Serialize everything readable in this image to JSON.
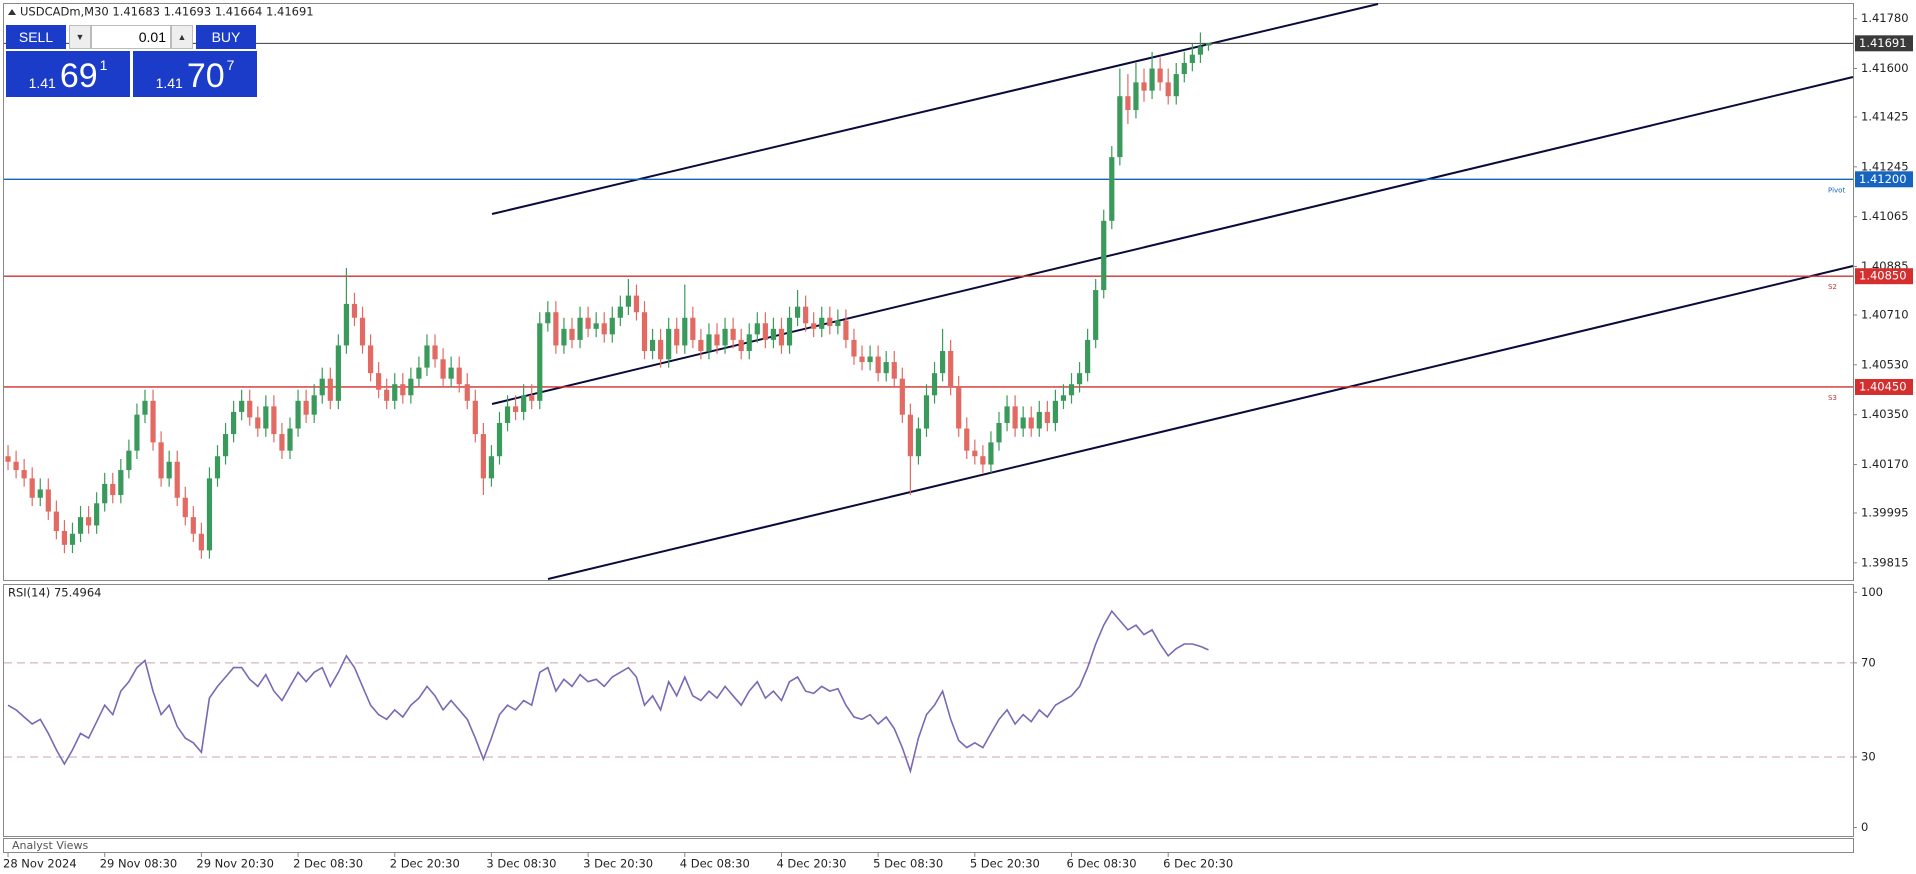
{
  "chart_data": [
    {
      "type": "candlestick",
      "title": "USDCADm,M30  1.41683 1.41693 1.41664 1.41691",
      "up_color": "#3a9a5b",
      "down_color": "#e26a63",
      "xlim": [
        -0.5,
        229
      ],
      "xticks": [
        {
          "value": 0,
          "label": "28 Nov 2024"
        },
        {
          "value": 12,
          "label": "29 Nov 08:30"
        },
        {
          "value": 24,
          "label": "29 Nov 20:30"
        },
        {
          "value": 36,
          "label": "2 Dec 08:30"
        },
        {
          "value": 48,
          "label": "2 Dec 20:30"
        },
        {
          "value": 60,
          "label": "3 Dec 08:30"
        },
        {
          "value": 72,
          "label": "3 Dec 20:30"
        },
        {
          "value": 84,
          "label": "4 Dec 08:30"
        },
        {
          "value": 96,
          "label": "4 Dec 20:30"
        },
        {
          "value": 108,
          "label": "5 Dec 08:30"
        },
        {
          "value": 120,
          "label": "5 Dec 20:30"
        },
        {
          "value": 132,
          "label": "6 Dec 08:30"
        },
        {
          "value": 144,
          "label": "6 Dec 20:30"
        }
      ],
      "ylim": [
        1.39753,
        1.41833
      ],
      "yticks": [
        {
          "value": 1.4178,
          "label": "1.41780"
        },
        {
          "value": 1.416,
          "label": "1.41600"
        },
        1.41425,
        1.41245,
        1.41065,
        1.40885,
        {
          "value": 1.4071,
          "label": "1.40710"
        },
        {
          "value": 1.4053,
          "label": "1.40530"
        },
        {
          "value": 1.4035,
          "label": "1.40350"
        },
        {
          "value": 1.4017,
          "label": "1.40170"
        },
        1.39995,
        1.39815
      ],
      "price_line": {
        "value": 1.41691,
        "label": "1.41691",
        "color": "#3a3a3a"
      },
      "levels": [
        {
          "name": "Pivot",
          "value": 1.412,
          "label": "1.41200",
          "color": "#1565c0"
        },
        {
          "name": "S2",
          "value": 1.4085,
          "label": "1.40850",
          "color": "#d32f2f"
        },
        {
          "name": "S3",
          "value": 1.4045,
          "label": "1.40450",
          "color": "#d32f2f"
        }
      ],
      "ohlc": [
        [
          1.402,
          1.4024,
          1.4015,
          1.4018
        ],
        [
          1.4018,
          1.4022,
          1.4012,
          1.4015
        ],
        [
          1.4015,
          1.4019,
          1.4009,
          1.4012
        ],
        [
          1.4012,
          1.4016,
          1.4002,
          1.4005
        ],
        [
          1.4005,
          1.4012,
          1.4002,
          1.4008
        ],
        [
          1.4008,
          1.4012,
          1.3997,
          1.4
        ],
        [
          1.4,
          1.4004,
          1.399,
          1.3993
        ],
        [
          1.3993,
          1.3997,
          1.3985,
          1.3988
        ],
        [
          1.3988,
          1.3996,
          1.3985,
          1.3992
        ],
        [
          1.3992,
          1.4002,
          1.3989,
          1.3998
        ],
        [
          1.3998,
          1.4002,
          1.3992,
          1.3995
        ],
        [
          1.3995,
          1.4007,
          1.3992,
          1.4003
        ],
        [
          1.4003,
          1.4014,
          1.4,
          1.401
        ],
        [
          1.401,
          1.4014,
          1.4003,
          1.4006
        ],
        [
          1.4006,
          1.4019,
          1.4003,
          1.4015
        ],
        [
          1.4015,
          1.4026,
          1.4012,
          1.4022
        ],
        [
          1.4022,
          1.4039,
          1.4019,
          1.4035
        ],
        [
          1.4035,
          1.4044,
          1.4032,
          1.404
        ],
        [
          1.404,
          1.4044,
          1.4022,
          1.4025
        ],
        [
          1.4025,
          1.4029,
          1.4009,
          1.4012
        ],
        [
          1.4012,
          1.4022,
          1.4009,
          1.4018
        ],
        [
          1.4018,
          1.4022,
          1.4002,
          1.4005
        ],
        [
          1.4005,
          1.4009,
          1.3995,
          1.3998
        ],
        [
          1.3998,
          1.4002,
          1.3989,
          1.3992
        ],
        [
          1.3992,
          1.3996,
          1.3983,
          1.3986
        ],
        [
          1.3986,
          1.4016,
          1.3983,
          1.4012
        ],
        [
          1.4012,
          1.4024,
          1.4009,
          1.402
        ],
        [
          1.402,
          1.4032,
          1.4017,
          1.4028
        ],
        [
          1.4028,
          1.404,
          1.4025,
          1.4036
        ],
        [
          1.4036,
          1.4044,
          1.4033,
          1.404
        ],
        [
          1.404,
          1.4044,
          1.4031,
          1.4034
        ],
        [
          1.4034,
          1.4038,
          1.4027,
          1.403
        ],
        [
          1.403,
          1.4042,
          1.4027,
          1.4038
        ],
        [
          1.4038,
          1.4042,
          1.4025,
          1.4028
        ],
        [
          1.4028,
          1.4032,
          1.4019,
          1.4022
        ],
        [
          1.4022,
          1.4034,
          1.4019,
          1.403
        ],
        [
          1.403,
          1.4044,
          1.4027,
          1.404
        ],
        [
          1.404,
          1.4044,
          1.4032,
          1.4035
        ],
        [
          1.4035,
          1.4046,
          1.4032,
          1.4042
        ],
        [
          1.4042,
          1.4052,
          1.4039,
          1.4048
        ],
        [
          1.4048,
          1.4052,
          1.4037,
          1.404
        ],
        [
          1.404,
          1.4064,
          1.4037,
          1.406
        ],
        [
          1.406,
          1.4088,
          1.4057,
          1.4075
        ],
        [
          1.4075,
          1.4079,
          1.4067,
          1.407
        ],
        [
          1.407,
          1.4074,
          1.4057,
          1.406
        ],
        [
          1.406,
          1.4064,
          1.4047,
          1.405
        ],
        [
          1.405,
          1.4054,
          1.4041,
          1.4044
        ],
        [
          1.4044,
          1.4048,
          1.4037,
          1.404
        ],
        [
          1.404,
          1.405,
          1.4037,
          1.4046
        ],
        [
          1.4046,
          1.405,
          1.4039,
          1.4042
        ],
        [
          1.4042,
          1.4052,
          1.4039,
          1.4048
        ],
        [
          1.4048,
          1.4056,
          1.4045,
          1.4052
        ],
        [
          1.4052,
          1.4064,
          1.4049,
          1.406
        ],
        [
          1.406,
          1.4064,
          1.4052,
          1.4055
        ],
        [
          1.4055,
          1.4059,
          1.4045,
          1.4048
        ],
        [
          1.4048,
          1.4056,
          1.4045,
          1.4052
        ],
        [
          1.4052,
          1.4056,
          1.4043,
          1.4046
        ],
        [
          1.4046,
          1.405,
          1.4037,
          1.404
        ],
        [
          1.404,
          1.4044,
          1.4025,
          1.4028
        ],
        [
          1.4028,
          1.4032,
          1.4006,
          1.4012
        ],
        [
          1.4012,
          1.4024,
          1.4009,
          1.402
        ],
        [
          1.402,
          1.4036,
          1.4017,
          1.4032
        ],
        [
          1.4032,
          1.4042,
          1.4029,
          1.4038
        ],
        [
          1.4038,
          1.4042,
          1.4033,
          1.4036
        ],
        [
          1.4036,
          1.4046,
          1.4033,
          1.4042
        ],
        [
          1.4042,
          1.4046,
          1.4037,
          1.404
        ],
        [
          1.404,
          1.4072,
          1.4037,
          1.4068
        ],
        [
          1.4068,
          1.4076,
          1.4065,
          1.4072
        ],
        [
          1.4072,
          1.4076,
          1.4057,
          1.406
        ],
        [
          1.406,
          1.407,
          1.4057,
          1.4066
        ],
        [
          1.4066,
          1.407,
          1.4059,
          1.4062
        ],
        [
          1.4062,
          1.4074,
          1.4059,
          1.407
        ],
        [
          1.407,
          1.4074,
          1.4063,
          1.4066
        ],
        [
          1.4066,
          1.4072,
          1.4063,
          1.4068
        ],
        [
          1.4068,
          1.4072,
          1.4061,
          1.4064
        ],
        [
          1.4064,
          1.4074,
          1.4061,
          1.407
        ],
        [
          1.407,
          1.4078,
          1.4067,
          1.4074
        ],
        [
          1.4074,
          1.4084,
          1.4071,
          1.4078
        ],
        [
          1.4078,
          1.4082,
          1.4069,
          1.4072
        ],
        [
          1.4072,
          1.4076,
          1.4055,
          1.4058
        ],
        [
          1.4058,
          1.4066,
          1.4055,
          1.4062
        ],
        [
          1.4062,
          1.4066,
          1.4052,
          1.4055
        ],
        [
          1.4055,
          1.407,
          1.4052,
          1.4066
        ],
        [
          1.4066,
          1.407,
          1.4057,
          1.406
        ],
        [
          1.406,
          1.4082,
          1.4057,
          1.407
        ],
        [
          1.407,
          1.4074,
          1.4059,
          1.4062
        ],
        [
          1.4062,
          1.4066,
          1.4055,
          1.4058
        ],
        [
          1.4058,
          1.4068,
          1.4055,
          1.4064
        ],
        [
          1.4064,
          1.4068,
          1.4057,
          1.406
        ],
        [
          1.406,
          1.407,
          1.4057,
          1.4066
        ],
        [
          1.4066,
          1.407,
          1.4059,
          1.4062
        ],
        [
          1.4062,
          1.4066,
          1.4055,
          1.4058
        ],
        [
          1.4058,
          1.4068,
          1.4055,
          1.4064
        ],
        [
          1.4064,
          1.4072,
          1.4061,
          1.4068
        ],
        [
          1.4068,
          1.4072,
          1.4059,
          1.4062
        ],
        [
          1.4062,
          1.407,
          1.4059,
          1.4066
        ],
        [
          1.4066,
          1.407,
          1.4057,
          1.406
        ],
        [
          1.406,
          1.4074,
          1.4057,
          1.407
        ],
        [
          1.407,
          1.408,
          1.4067,
          1.4074
        ],
        [
          1.4074,
          1.4078,
          1.4065,
          1.4068
        ],
        [
          1.4068,
          1.4072,
          1.4063,
          1.4066
        ],
        [
          1.4066,
          1.4074,
          1.4063,
          1.407
        ],
        [
          1.407,
          1.4074,
          1.4064,
          1.4067
        ],
        [
          1.4067,
          1.4073,
          1.4064,
          1.4069
        ],
        [
          1.4069,
          1.4073,
          1.4059,
          1.4062
        ],
        [
          1.4062,
          1.4066,
          1.4053,
          1.4056
        ],
        [
          1.4056,
          1.406,
          1.4051,
          1.4054
        ],
        [
          1.4054,
          1.406,
          1.4051,
          1.4056
        ],
        [
          1.4056,
          1.406,
          1.4047,
          1.405
        ],
        [
          1.405,
          1.4058,
          1.4047,
          1.4054
        ],
        [
          1.4054,
          1.4058,
          1.4045,
          1.4048
        ],
        [
          1.4048,
          1.4052,
          1.4032,
          1.4035
        ],
        [
          1.4035,
          1.4039,
          1.4006,
          1.402
        ],
        [
          1.402,
          1.4034,
          1.4017,
          1.403
        ],
        [
          1.403,
          1.4046,
          1.4027,
          1.4042
        ],
        [
          1.4042,
          1.4054,
          1.4039,
          1.405
        ],
        [
          1.405,
          1.4066,
          1.4047,
          1.4058
        ],
        [
          1.4058,
          1.4062,
          1.4042,
          1.4045
        ],
        [
          1.4045,
          1.4049,
          1.4027,
          1.403
        ],
        [
          1.403,
          1.4034,
          1.4019,
          1.4022
        ],
        [
          1.4022,
          1.4026,
          1.4017,
          1.402
        ],
        [
          1.402,
          1.4024,
          1.4014,
          1.4017
        ],
        [
          1.4017,
          1.4029,
          1.4014,
          1.4025
        ],
        [
          1.4025,
          1.4036,
          1.4022,
          1.4032
        ],
        [
          1.4032,
          1.4042,
          1.4029,
          1.4038
        ],
        [
          1.4038,
          1.4042,
          1.4027,
          1.403
        ],
        [
          1.403,
          1.4038,
          1.4027,
          1.4034
        ],
        [
          1.4034,
          1.4038,
          1.4027,
          1.403
        ],
        [
          1.403,
          1.404,
          1.4027,
          1.4036
        ],
        [
          1.4036,
          1.404,
          1.4029,
          1.4032
        ],
        [
          1.4032,
          1.4044,
          1.4029,
          1.404
        ],
        [
          1.404,
          1.4046,
          1.4037,
          1.4042
        ],
        [
          1.4042,
          1.405,
          1.4039,
          1.4046
        ],
        [
          1.4046,
          1.4054,
          1.4043,
          1.405
        ],
        [
          1.405,
          1.4066,
          1.4047,
          1.4062
        ],
        [
          1.4062,
          1.4084,
          1.4059,
          1.408
        ],
        [
          1.408,
          1.4109,
          1.4077,
          1.4105
        ],
        [
          1.4105,
          1.4132,
          1.4102,
          1.4128
        ],
        [
          1.4128,
          1.416,
          1.4125,
          1.415
        ],
        [
          1.415,
          1.4158,
          1.414,
          1.4145
        ],
        [
          1.4145,
          1.4162,
          1.4142,
          1.4155
        ],
        [
          1.4155,
          1.416,
          1.4148,
          1.4152
        ],
        [
          1.4152,
          1.4166,
          1.4149,
          1.416
        ],
        [
          1.416,
          1.4164,
          1.4152,
          1.4155
        ],
        [
          1.4155,
          1.416,
          1.4147,
          1.415
        ],
        [
          1.415,
          1.4162,
          1.4147,
          1.4158
        ],
        [
          1.4158,
          1.4166,
          1.4155,
          1.4162
        ],
        [
          1.4162,
          1.4169,
          1.4159,
          1.4165
        ],
        [
          1.4165,
          1.4173,
          1.4162,
          1.4168
        ],
        [
          1.41683,
          1.41693,
          1.41664,
          1.41691
        ]
      ]
    },
    {
      "type": "line",
      "title": "RSI(14) 75.4964",
      "color": "#7b68b5",
      "xlim": [
        -0.5,
        229
      ],
      "ylim": [
        -3.6,
        103.1
      ],
      "yticks": [
        0,
        30,
        70,
        100
      ],
      "levels": [
        30,
        70
      ],
      "values": [
        52,
        50,
        47,
        44,
        46,
        40,
        33,
        27,
        33,
        40,
        38,
        45,
        52,
        48,
        58,
        62,
        68,
        71,
        58,
        48,
        52,
        43,
        38,
        36,
        32,
        55,
        60,
        64,
        68,
        68,
        63,
        60,
        65,
        58,
        54,
        60,
        66,
        62,
        66,
        68,
        60,
        66,
        73,
        68,
        60,
        52,
        48,
        46,
        50,
        47,
        52,
        55,
        60,
        56,
        50,
        54,
        50,
        46,
        38,
        29,
        38,
        48,
        52,
        50,
        54,
        52,
        66,
        68,
        58,
        63,
        60,
        65,
        62,
        63,
        60,
        64,
        66,
        68,
        64,
        52,
        56,
        50,
        62,
        56,
        64,
        56,
        54,
        58,
        55,
        60,
        56,
        52,
        58,
        62,
        55,
        58,
        54,
        62,
        64,
        58,
        57,
        60,
        58,
        59,
        52,
        47,
        46,
        48,
        44,
        47,
        42,
        34,
        24,
        38,
        48,
        52,
        58,
        46,
        37,
        34,
        36,
        34,
        40,
        46,
        50,
        44,
        48,
        45,
        50,
        47,
        52,
        54,
        56,
        60,
        68,
        78,
        86,
        92,
        88,
        84,
        86,
        82,
        84,
        78,
        73,
        76,
        78,
        78,
        77,
        75.4964
      ]
    }
  ],
  "trade_panel": {
    "sell": "SELL",
    "lot": "0.01",
    "buy": "BUY",
    "bid_big": "1.41",
    "bid_pips": "69",
    "bid_frac": "1",
    "ask_big": "1.41",
    "ask_pips": "70",
    "ask_frac": "7"
  },
  "footer": "Analyst Views"
}
